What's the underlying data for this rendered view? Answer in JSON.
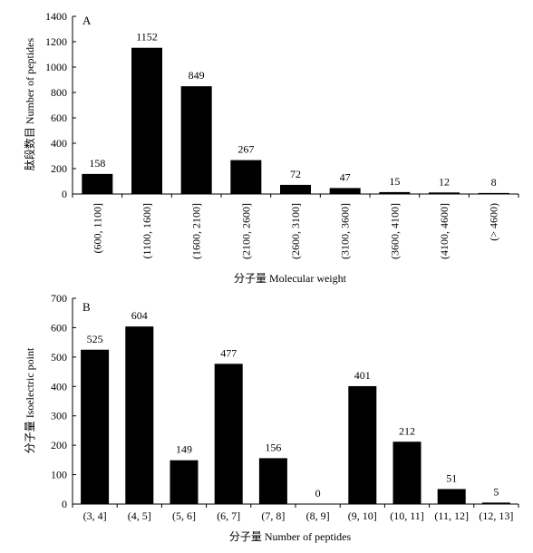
{
  "chart_data": [
    {
      "panel": "A",
      "type": "bar",
      "categories": [
        "(600, 1100]",
        "(1100, 1600]",
        "(1600, 2100]",
        "(2100, 2600]",
        "(2600, 3100]",
        "(3100, 3600]",
        "(3600, 4100]",
        "(4100, 4600]",
        "(> 4600)"
      ],
      "values": [
        158,
        1152,
        849,
        267,
        72,
        47,
        15,
        12,
        8
      ],
      "xlabel": "分子量 Molecular weight",
      "ylabel": "肽段数目 Number of peptides",
      "ylim": [
        0,
        1400
      ],
      "yticks": [
        0,
        200,
        400,
        600,
        800,
        1000,
        1200,
        1400
      ]
    },
    {
      "panel": "B",
      "type": "bar",
      "categories": [
        "(3, 4]",
        "(4, 5]",
        "(5, 6]",
        "(6, 7]",
        "(7, 8]",
        "(8, 9]",
        "(9, 10]",
        "(10, 11]",
        "(11, 12]",
        "(12, 13]"
      ],
      "values": [
        525,
        604,
        149,
        477,
        156,
        0,
        401,
        212,
        51,
        5
      ],
      "xlabel": "分子量 Number of peptides",
      "ylabel": "分子量 Isoelectric point",
      "ylim": [
        0,
        700
      ],
      "yticks": [
        0,
        100,
        200,
        300,
        400,
        500,
        600,
        700
      ]
    }
  ]
}
